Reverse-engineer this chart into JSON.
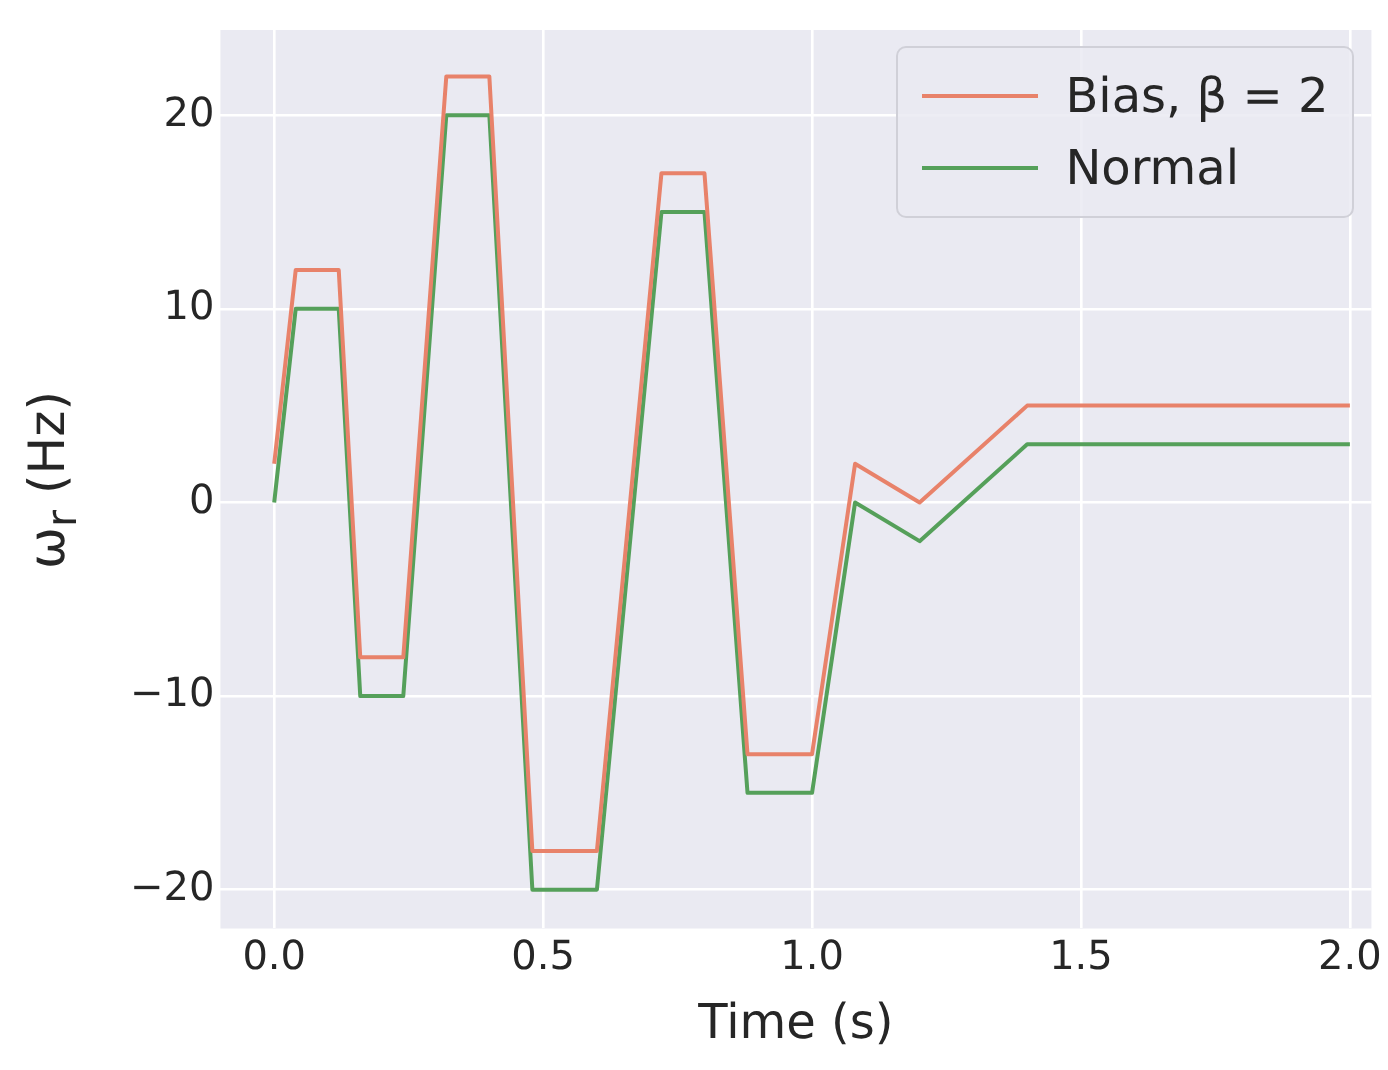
{
  "chart_data": {
    "type": "line",
    "xlabel": "Time (s)",
    "ylabel": "ω$_{r}$ (Hz)",
    "x": [
      0,
      0.04,
      0.12,
      0.16,
      0.24,
      0.32,
      0.4,
      0.48,
      0.6,
      0.72,
      0.8,
      0.88,
      1.0,
      1.08,
      1.2,
      1.4,
      2.0
    ],
    "series": [
      {
        "name": "Bias, β = 2",
        "color": "#e8826a",
        "values": [
          2,
          12,
          12,
          -8,
          -8,
          22,
          22,
          -18,
          -18,
          17,
          17,
          -13,
          -13,
          2,
          0,
          5,
          5
        ]
      },
      {
        "name": "Normal",
        "color": "#55a05a",
        "values": [
          0,
          10,
          10,
          -10,
          -10,
          20,
          20,
          -20,
          -20,
          15,
          15,
          -15,
          -15,
          0,
          -2,
          3,
          3
        ]
      }
    ],
    "xlim": [
      -0.1,
      2.04
    ],
    "ylim": [
      -22,
      24.4
    ],
    "xticks": [
      {
        "value": 0,
        "label": "0.0"
      },
      {
        "value": 0.5,
        "label": "0.5"
      },
      {
        "value": 1,
        "label": "1.0"
      },
      {
        "value": 1.5,
        "label": "1.5"
      },
      {
        "value": 2,
        "label": "2.0"
      }
    ],
    "yticks": [
      {
        "value": -20,
        "label": "−20"
      },
      {
        "value": -10,
        "label": "−10"
      },
      0,
      10,
      20
    ],
    "grid": true,
    "legend": "top right",
    "line_style": "solid",
    "marker": "none"
  }
}
